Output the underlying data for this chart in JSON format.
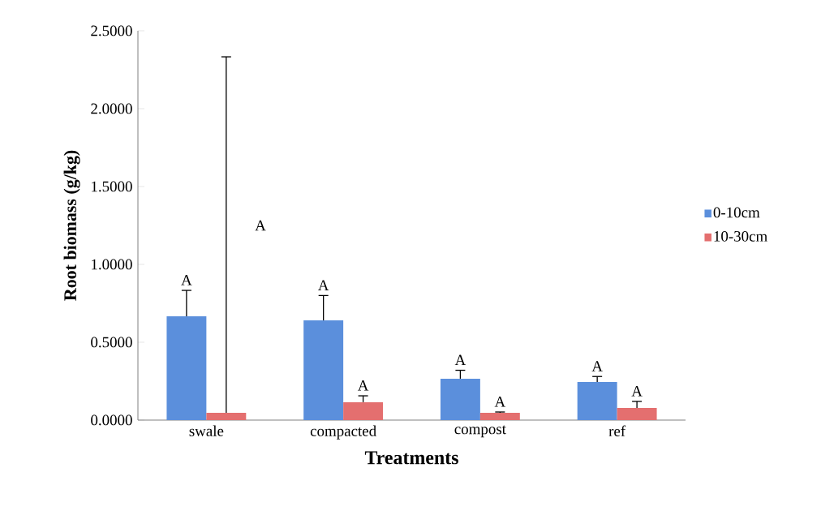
{
  "chart_data": {
    "type": "bar",
    "xlabel": "Treatments",
    "ylabel": "Root biomass (g/kg)",
    "categories": [
      "swale",
      "compacted",
      "compost",
      "ref"
    ],
    "series": [
      {
        "name": "0-10cm",
        "color": "#5b8fdc",
        "values": [
          0.667,
          0.64,
          0.266,
          0.245
        ],
        "errors": [
          [
            0.667,
            0.833
          ],
          [
            0.64,
            0.8
          ],
          [
            0.266,
            0.32
          ],
          [
            0.245,
            0.28
          ]
        ]
      },
      {
        "name": "10-30cm",
        "color": "#e46f6f",
        "values": [
          0.047,
          0.115,
          0.047,
          0.078
        ],
        "errors": [
          [
            0.047,
            2.333
          ],
          [
            0.115,
            0.156
          ],
          [
            0.047,
            0.052
          ],
          [
            0.078,
            0.12
          ]
        ]
      }
    ],
    "ylim": [
      0,
      2.5
    ],
    "yticks": [
      {
        "value": 0,
        "label": "0.0000"
      },
      {
        "value": 0.5,
        "label": "0.5000"
      },
      {
        "value": 1,
        "label": "1.0000"
      },
      {
        "value": 1.5,
        "label": "1.5000"
      },
      {
        "value": 2,
        "label": "2.0000"
      },
      {
        "value": 2.5,
        "label": "2.5000"
      }
    ],
    "annotations": [
      "A",
      "A",
      "A",
      "A",
      "A",
      "A",
      "A",
      "A"
    ],
    "legend": "right",
    "grid": false
  }
}
